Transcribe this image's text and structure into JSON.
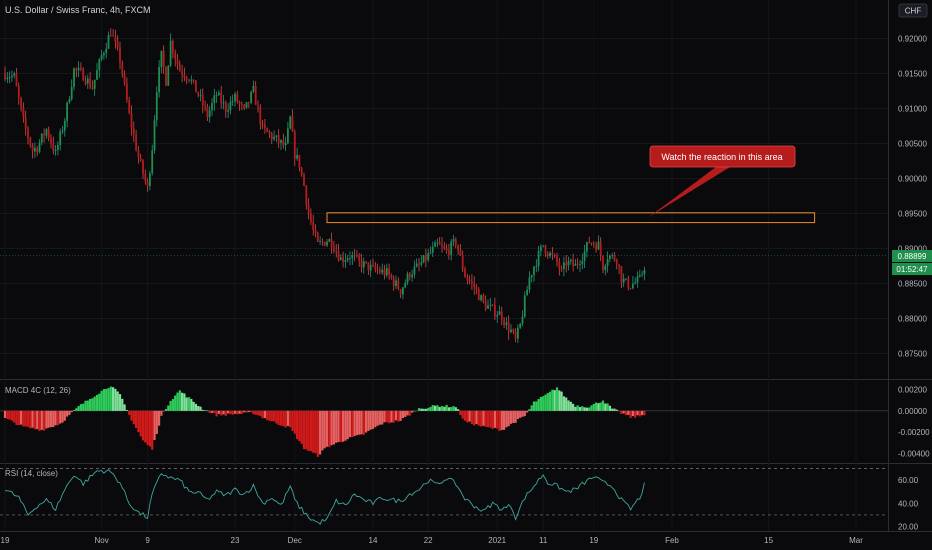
{
  "header": {
    "title": "U.S. Dollar / Swiss Franc, 4h, FXCM",
    "currency_badge": "CHF"
  },
  "annotation": {
    "callout_text": "Watch the reaction in this area"
  },
  "price_badges": {
    "last": "0.88899",
    "countdown": "01:52:47"
  },
  "colors": {
    "background": "#0a0a0c",
    "bull": "#26a69a",
    "bear": "#ef5350",
    "bull_fill": "#1f8f4e",
    "bear_fill": "#b71c1c",
    "macd_pos": "#2fcc5a",
    "macd_neg": "#d31a1a",
    "rsi_line": "#3fa7a0",
    "zone": "#f28c28",
    "callout": "#b71c1c"
  },
  "chart_data": [
    {
      "type": "candlestick",
      "title": "U.S. Dollar / Swiss Franc, 4h, FXCM",
      "ylim": [
        0.8715,
        0.9255
      ],
      "yticks": [
        0.92,
        0.915,
        0.91,
        0.905,
        0.9,
        0.895,
        0.89,
        0.885,
        0.88,
        0.875
      ],
      "ytick_labels": [
        "0.92000",
        "0.91500",
        "0.91000",
        "0.90500",
        "0.90000",
        "0.89500",
        "0.89000",
        "0.88500",
        "0.88000",
        "0.87500"
      ],
      "x_labels": [
        "19",
        "Nov",
        "9",
        "23",
        "Dec",
        "14",
        "22",
        "2021",
        "11",
        "19",
        "Feb",
        "15",
        "Mar"
      ],
      "x_label_positions": [
        0,
        21,
        31,
        50,
        63,
        80,
        92,
        107,
        117,
        128,
        145,
        166,
        185
      ],
      "x_range": [
        0,
        195
      ],
      "price_path": [
        [
          0,
          0.915
        ],
        [
          2,
          0.9145
        ],
        [
          4,
          0.908
        ],
        [
          6,
          0.904
        ],
        [
          7,
          0.9045
        ],
        [
          9,
          0.907
        ],
        [
          11,
          0.9035
        ],
        [
          13,
          0.9085
        ],
        [
          15,
          0.9155
        ],
        [
          17,
          0.9148
        ],
        [
          19,
          0.913
        ],
        [
          21,
          0.9175
        ],
        [
          23,
          0.921
        ],
        [
          25,
          0.917
        ],
        [
          27,
          0.909
        ],
        [
          29,
          0.903
        ],
        [
          31,
          0.8985
        ],
        [
          32,
          0.9045
        ],
        [
          33,
          0.913
        ],
        [
          34,
          0.9175
        ],
        [
          35,
          0.914
        ],
        [
          36,
          0.9195
        ],
        [
          38,
          0.9155
        ],
        [
          40,
          0.9145
        ],
        [
          42,
          0.912
        ],
        [
          44,
          0.909
        ],
        [
          46,
          0.912
        ],
        [
          48,
          0.91
        ],
        [
          50,
          0.9115
        ],
        [
          52,
          0.9095
        ],
        [
          54,
          0.9125
        ],
        [
          56,
          0.907
        ],
        [
          58,
          0.906
        ],
        [
          59,
          0.9055
        ],
        [
          61,
          0.9045
        ],
        [
          62,
          0.9085
        ],
        [
          63,
          0.9035
        ],
        [
          64,
          0.902
        ],
        [
          65,
          0.899
        ],
        [
          66,
          0.895
        ],
        [
          67,
          0.8925
        ],
        [
          68,
          0.8905
        ],
        [
          70,
          0.8912
        ],
        [
          71,
          0.891
        ],
        [
          73,
          0.8885
        ],
        [
          75,
          0.889
        ],
        [
          77,
          0.888
        ],
        [
          80,
          0.887
        ],
        [
          83,
          0.8865
        ],
        [
          86,
          0.884
        ],
        [
          88,
          0.8865
        ],
        [
          90,
          0.8875
        ],
        [
          92,
          0.889
        ],
        [
          94,
          0.8905
        ],
        [
          96,
          0.8895
        ],
        [
          98,
          0.891
        ],
        [
          100,
          0.8862
        ],
        [
          102,
          0.8845
        ],
        [
          104,
          0.8822
        ],
        [
          106,
          0.8812
        ],
        [
          108,
          0.8805
        ],
        [
          109,
          0.879
        ],
        [
          110,
          0.8782
        ],
        [
          111,
          0.8768
        ],
        [
          112,
          0.879
        ],
        [
          113,
          0.8825
        ],
        [
          114,
          0.8858
        ],
        [
          115,
          0.8875
        ],
        [
          116,
          0.889
        ],
        [
          117,
          0.8905
        ],
        [
          118,
          0.8895
        ],
        [
          120,
          0.888
        ],
        [
          121,
          0.8865
        ],
        [
          122,
          0.888
        ],
        [
          124,
          0.8875
        ],
        [
          126,
          0.8895
        ],
        [
          127,
          0.891
        ],
        [
          129,
          0.8905
        ],
        [
          130,
          0.8875
        ],
        [
          131,
          0.889
        ],
        [
          133,
          0.8885
        ],
        [
          134,
          0.8858
        ],
        [
          135,
          0.885
        ],
        [
          136,
          0.8848
        ],
        [
          138,
          0.8855
        ],
        [
          139,
          0.8875
        ]
      ],
      "last_price": 0.88899,
      "zone": {
        "x": [
          70,
          176
        ],
        "y": [
          0.8937,
          0.8951
        ]
      },
      "callout_anchor": {
        "x": 140,
        "y": 0.8945
      }
    },
    {
      "type": "histogram",
      "title": "MACD 4C (12, 26)",
      "ylim": [
        -0.0048,
        0.0029
      ],
      "yticks": [
        0.002,
        0.0,
        -0.002,
        -0.004
      ],
      "ytick_labels": [
        "0.00200",
        "0.00000",
        "-0.00200",
        "-0.00400"
      ],
      "macd_path": [
        [
          0,
          -0.0007
        ],
        [
          4,
          -0.0015
        ],
        [
          8,
          -0.0018
        ],
        [
          12,
          -0.0012
        ],
        [
          16,
          0.0004
        ],
        [
          20,
          0.0016
        ],
        [
          23,
          0.0024
        ],
        [
          25,
          0.0015
        ],
        [
          27,
          -0.0004
        ],
        [
          30,
          -0.0028
        ],
        [
          32,
          -0.0036
        ],
        [
          34,
          -0.0005
        ],
        [
          36,
          0.001
        ],
        [
          38,
          0.0019
        ],
        [
          40,
          0.0012
        ],
        [
          43,
          0.0002
        ],
        [
          46,
          -0.0004
        ],
        [
          50,
          -0.0003
        ],
        [
          54,
          -0.0002
        ],
        [
          58,
          -0.001
        ],
        [
          62,
          -0.0016
        ],
        [
          65,
          -0.0035
        ],
        [
          68,
          -0.0042
        ],
        [
          70,
          -0.0034
        ],
        [
          74,
          -0.0027
        ],
        [
          78,
          -0.0022
        ],
        [
          82,
          -0.0012
        ],
        [
          86,
          -0.0009
        ],
        [
          90,
          0.0002
        ],
        [
          94,
          0.0005
        ],
        [
          98,
          0.0004
        ],
        [
          100,
          -0.001
        ],
        [
          104,
          -0.0015
        ],
        [
          108,
          -0.0018
        ],
        [
          111,
          -0.001
        ],
        [
          113,
          -0.0005
        ],
        [
          115,
          0.0008
        ],
        [
          118,
          0.0016
        ],
        [
          120,
          0.0022
        ],
        [
          122,
          0.0012
        ],
        [
          124,
          0.0005
        ],
        [
          127,
          0.0004
        ],
        [
          130,
          0.001
        ],
        [
          132,
          0.0002
        ],
        [
          134,
          -0.0002
        ],
        [
          136,
          -0.0006
        ],
        [
          138,
          -0.0005
        ],
        [
          139,
          -0.0003
        ]
      ]
    },
    {
      "type": "line",
      "title": "RSI (14, close)",
      "ylim": [
        17,
        74
      ],
      "yticks": [
        60,
        40,
        20
      ],
      "ytick_labels": [
        "60.00",
        "40.00",
        "20.00"
      ],
      "bands": [
        70,
        30
      ],
      "rsi_path": [
        [
          0,
          52
        ],
        [
          3,
          45
        ],
        [
          5,
          30
        ],
        [
          7,
          38
        ],
        [
          9,
          43
        ],
        [
          11,
          35
        ],
        [
          13,
          52
        ],
        [
          15,
          65
        ],
        [
          17,
          57
        ],
        [
          20,
          68
        ],
        [
          22,
          68
        ],
        [
          23,
          67
        ],
        [
          25,
          58
        ],
        [
          27,
          40
        ],
        [
          29,
          32
        ],
        [
          31,
          28
        ],
        [
          32,
          48
        ],
        [
          34,
          66
        ],
        [
          36,
          62
        ],
        [
          38,
          60
        ],
        [
          40,
          50
        ],
        [
          42,
          49
        ],
        [
          44,
          43
        ],
        [
          46,
          50
        ],
        [
          48,
          47
        ],
        [
          50,
          52
        ],
        [
          52,
          48
        ],
        [
          54,
          55
        ],
        [
          56,
          40
        ],
        [
          58,
          45
        ],
        [
          60,
          38
        ],
        [
          62,
          55
        ],
        [
          63,
          43
        ],
        [
          64,
          37
        ],
        [
          66,
          28
        ],
        [
          68,
          23
        ],
        [
          70,
          26
        ],
        [
          72,
          42
        ],
        [
          74,
          38
        ],
        [
          76,
          48
        ],
        [
          78,
          43
        ],
        [
          80,
          40
        ],
        [
          82,
          45
        ],
        [
          84,
          43
        ],
        [
          86,
          42
        ],
        [
          88,
          48
        ],
        [
          90,
          52
        ],
        [
          92,
          60
        ],
        [
          94,
          56
        ],
        [
          96,
          62
        ],
        [
          98,
          57
        ],
        [
          100,
          44
        ],
        [
          102,
          38
        ],
        [
          104,
          33
        ],
        [
          106,
          40
        ],
        [
          108,
          35
        ],
        [
          110,
          38
        ],
        [
          111,
          28
        ],
        [
          113,
          45
        ],
        [
          115,
          55
        ],
        [
          117,
          65
        ],
        [
          118,
          58
        ],
        [
          120,
          55
        ],
        [
          122,
          50
        ],
        [
          124,
          52
        ],
        [
          126,
          58
        ],
        [
          128,
          63
        ],
        [
          130,
          58
        ],
        [
          132,
          55
        ],
        [
          134,
          43
        ],
        [
          136,
          35
        ],
        [
          138,
          45
        ],
        [
          139,
          56
        ]
      ]
    }
  ]
}
